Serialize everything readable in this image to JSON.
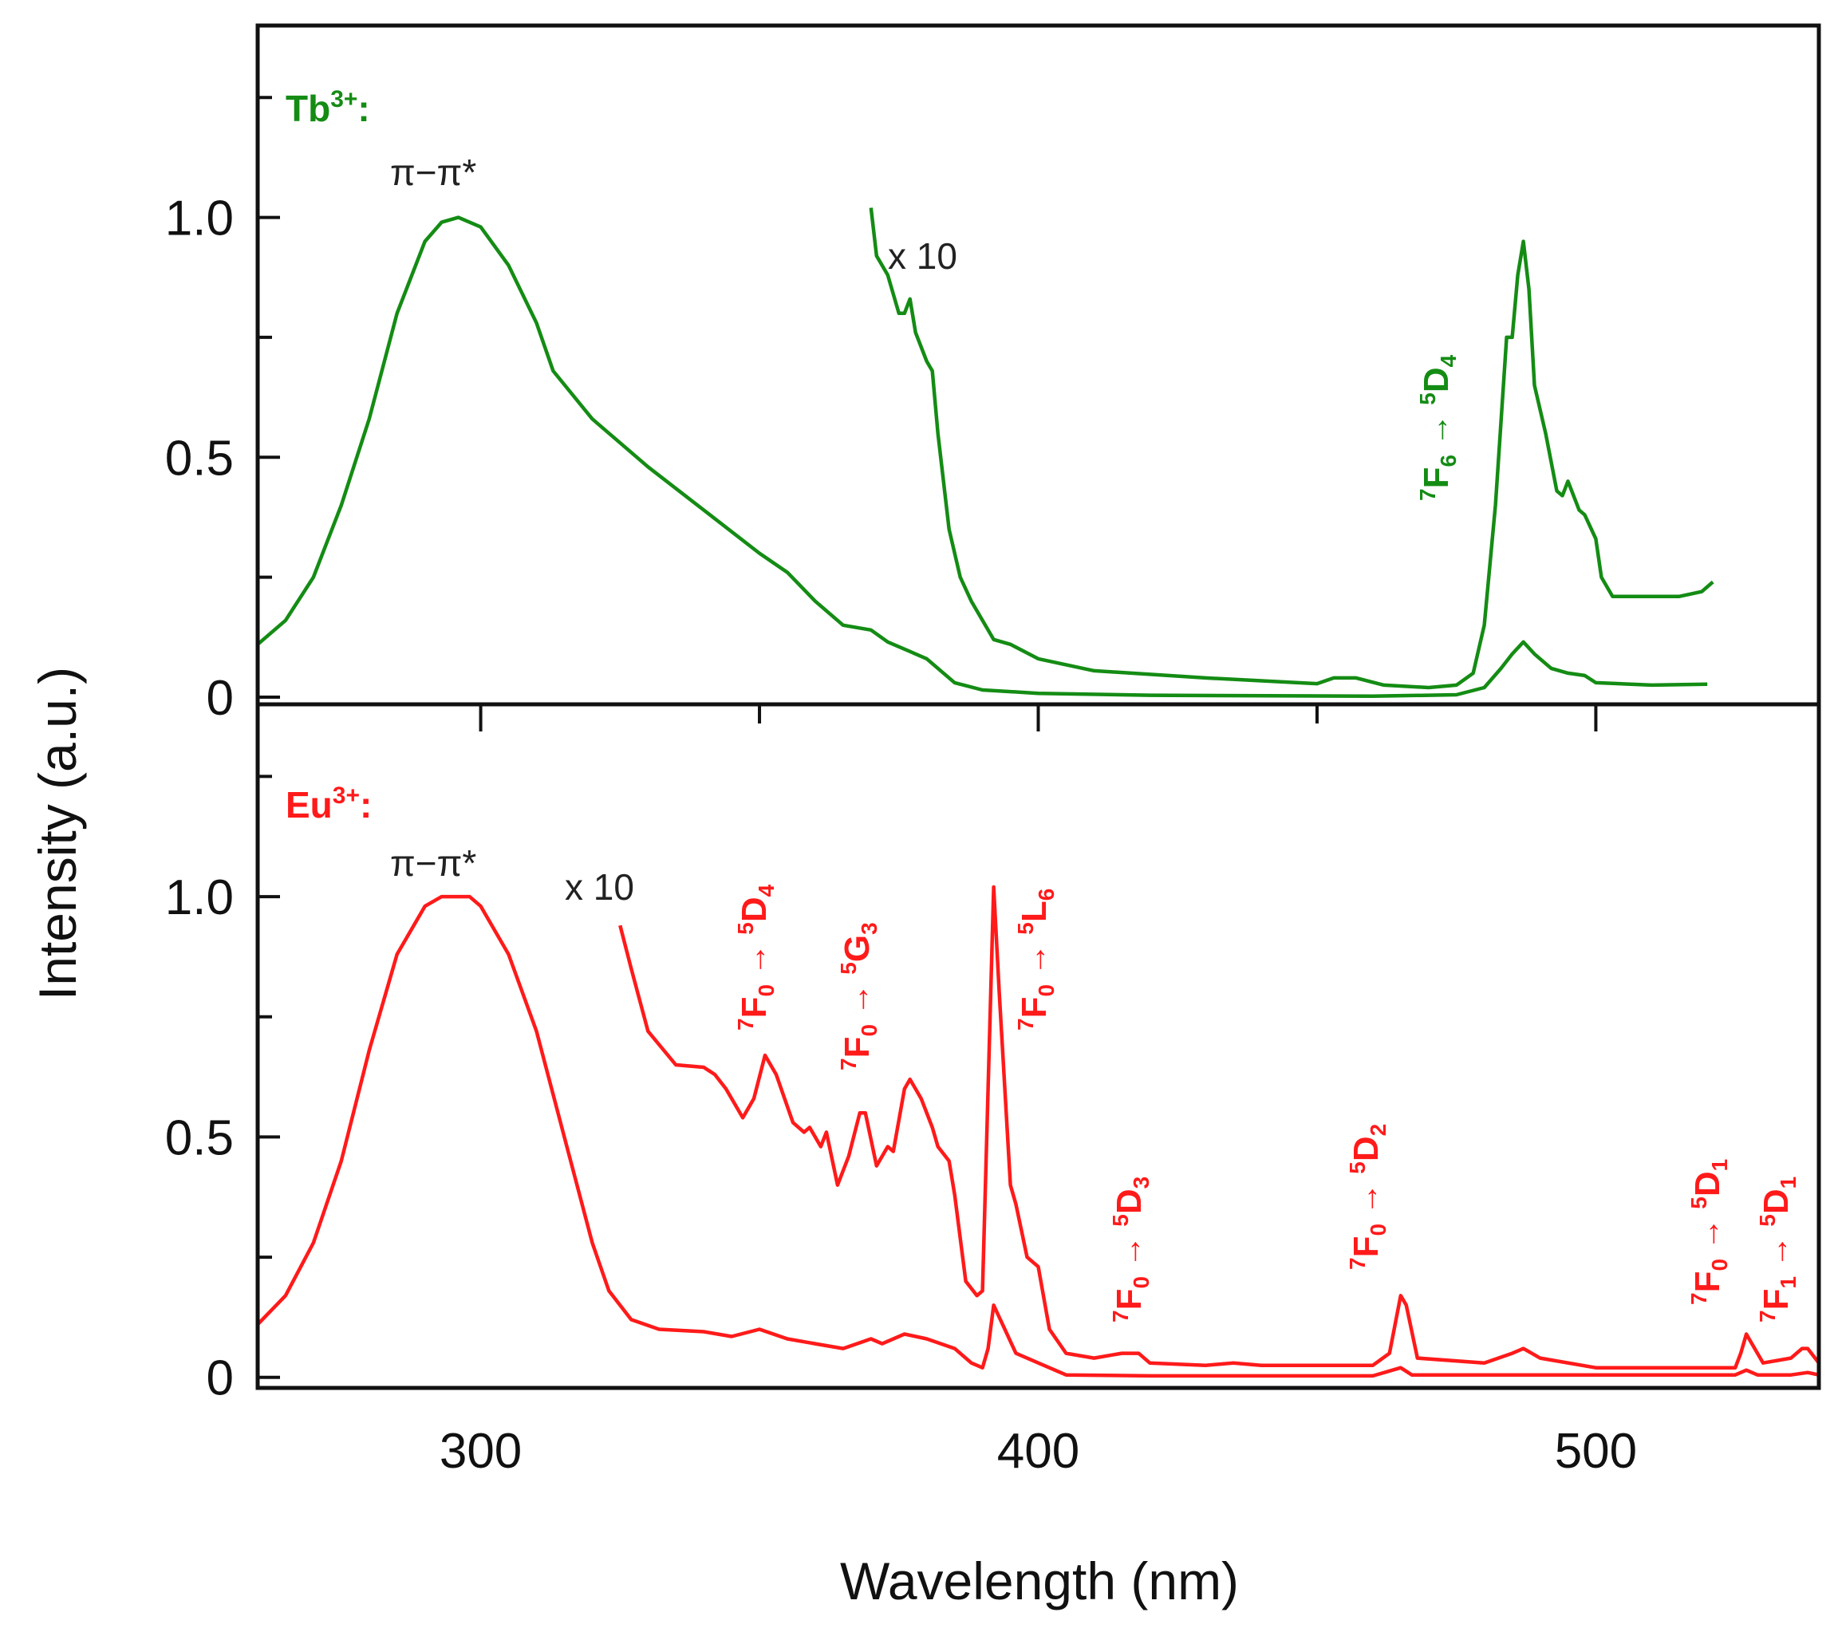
{
  "chart_data": [
    {
      "type": "line",
      "panel": "top",
      "title": "Tb3+:",
      "ion_label": {
        "main": "Tb",
        "sup": "3+",
        "suffix": ":"
      },
      "color": "#148c14",
      "xlabel": "Wavelength (nm)",
      "ylabel": "Intensity (a.u.)",
      "xlim": [
        260,
        540
      ],
      "ylim": [
        -0.015,
        1.4
      ],
      "xticks": [
        300,
        400,
        500
      ],
      "yticks": [
        0,
        0.5,
        1.0
      ],
      "ytick_labels": [
        "0",
        "0.5",
        "1.0"
      ],
      "annotations": {
        "band": "π−π*",
        "scale": "x 10"
      },
      "transitions": [
        {
          "a": "7",
          "b": "F",
          "c": "6",
          "arrow": " → ",
          "d": "5",
          "e": "D",
          "f": "4"
        }
      ],
      "series": [
        {
          "name": "Tb3+ excitation",
          "x": [
            260,
            265,
            270,
            275,
            280,
            285,
            290,
            293,
            296,
            300,
            305,
            310,
            313,
            320,
            325,
            330,
            340,
            350,
            355,
            360,
            365,
            370,
            373,
            376,
            380,
            385,
            390,
            400,
            420,
            460,
            475,
            480,
            483,
            485,
            487,
            489,
            492,
            495,
            498,
            500,
            510,
            520
          ],
          "y": [
            0.11,
            0.16,
            0.25,
            0.4,
            0.58,
            0.8,
            0.95,
            0.99,
            1.0,
            0.98,
            0.9,
            0.78,
            0.68,
            0.58,
            0.53,
            0.48,
            0.39,
            0.3,
            0.26,
            0.2,
            0.15,
            0.14,
            0.115,
            0.1,
            0.08,
            0.03,
            0.015,
            0.008,
            0.004,
            0.002,
            0.005,
            0.02,
            0.06,
            0.09,
            0.115,
            0.09,
            0.06,
            0.05,
            0.045,
            0.03,
            0.025,
            0.027
          ]
        },
        {
          "name": "Tb3+ excitation x10",
          "x": [
            370,
            371,
            373,
            375,
            376,
            377,
            378,
            380,
            381,
            382,
            384,
            386,
            388,
            390,
            392,
            395,
            400,
            410,
            430,
            450,
            453,
            457,
            462,
            470,
            475,
            478,
            480,
            482,
            484,
            485,
            486,
            487,
            488,
            489,
            491,
            493,
            494,
            495,
            497,
            498,
            500,
            501,
            503,
            510,
            515,
            519,
            521
          ],
          "y": [
            1.02,
            0.92,
            0.88,
            0.8,
            0.8,
            0.83,
            0.76,
            0.7,
            0.68,
            0.55,
            0.35,
            0.25,
            0.2,
            0.16,
            0.12,
            0.11,
            0.08,
            0.055,
            0.04,
            0.028,
            0.04,
            0.04,
            0.025,
            0.02,
            0.025,
            0.05,
            0.15,
            0.4,
            0.75,
            0.75,
            0.88,
            0.95,
            0.85,
            0.65,
            0.55,
            0.43,
            0.42,
            0.45,
            0.39,
            0.38,
            0.33,
            0.25,
            0.21,
            0.21,
            0.21,
            0.22,
            0.24
          ]
        }
      ]
    },
    {
      "type": "line",
      "panel": "bottom",
      "title": "Eu3+:",
      "ion_label": {
        "main": "Eu",
        "sup": "3+",
        "suffix": ":"
      },
      "color": "#ff1a1a",
      "xlabel": "Wavelength (nm)",
      "ylabel": "Intensity (a.u.)",
      "xlim": [
        260,
        540
      ],
      "ylim": [
        -0.022,
        1.4
      ],
      "xticks": [
        300,
        400,
        500
      ],
      "xtick_labels": [
        "300",
        "400",
        "500"
      ],
      "yticks": [
        0,
        0.5,
        1.0
      ],
      "ytick_labels": [
        "0",
        "0.5",
        "1.0"
      ],
      "annotations": {
        "band": "π−π*",
        "scale": "x 10"
      },
      "transitions": [
        {
          "a": "7",
          "b": "F",
          "c": "0",
          "arrow": " → ",
          "d": "5",
          "e": "D",
          "f": "4"
        },
        {
          "a": "7",
          "b": "F",
          "c": "0",
          "arrow": " → ",
          "d": "5",
          "e": "G",
          "f": "3"
        },
        {
          "a": "7",
          "b": "F",
          "c": "0",
          "arrow": " → ",
          "d": "5",
          "e": "L",
          "f": "6"
        },
        {
          "a": "7",
          "b": "F",
          "c": "0",
          "arrow": " → ",
          "d": "5",
          "e": "D",
          "f": "3"
        },
        {
          "a": "7",
          "b": "F",
          "c": "0",
          "arrow": " → ",
          "d": "5",
          "e": "D",
          "f": "2"
        },
        {
          "a": "7",
          "b": "F",
          "c": "0",
          "arrow": " → ",
          "d": "5",
          "e": "D",
          "f": "1"
        },
        {
          "a": "7",
          "b": "F",
          "c": "1",
          "arrow": " → ",
          "d": "5",
          "e": "D",
          "f": "1"
        }
      ],
      "series": [
        {
          "name": "Eu3+ excitation",
          "x": [
            260,
            265,
            270,
            275,
            280,
            285,
            290,
            293,
            298,
            300,
            305,
            310,
            315,
            320,
            323,
            327,
            332,
            340,
            345,
            350,
            355,
            360,
            365,
            370,
            372,
            376,
            380,
            385,
            388,
            390,
            391,
            392,
            394,
            396,
            400,
            405,
            420,
            460,
            465,
            467,
            480,
            500,
            525,
            527,
            529,
            535,
            538,
            540
          ],
          "y": [
            0.11,
            0.17,
            0.28,
            0.45,
            0.68,
            0.88,
            0.98,
            1.0,
            1.0,
            0.98,
            0.88,
            0.72,
            0.5,
            0.28,
            0.18,
            0.12,
            0.1,
            0.095,
            0.085,
            0.1,
            0.08,
            0.07,
            0.06,
            0.08,
            0.07,
            0.09,
            0.08,
            0.06,
            0.03,
            0.02,
            0.06,
            0.15,
            0.1,
            0.05,
            0.03,
            0.005,
            0.003,
            0.003,
            0.02,
            0.005,
            0.005,
            0.005,
            0.005,
            0.015,
            0.005,
            0.005,
            0.01,
            0.005
          ]
        },
        {
          "name": "Eu3+ excitation x10",
          "x": [
            325,
            327,
            330,
            335,
            340,
            342,
            344,
            347,
            349,
            351,
            353,
            356,
            358,
            359,
            361,
            362,
            364,
            366,
            368,
            369,
            371,
            373,
            374,
            376,
            377,
            379,
            381,
            382,
            384,
            385,
            387,
            389,
            390,
            391,
            392,
            393,
            395,
            396,
            398,
            400,
            402,
            405,
            410,
            415,
            418,
            420,
            430,
            435,
            440,
            460,
            463,
            465,
            466,
            468,
            480,
            485,
            487,
            490,
            500,
            525,
            526,
            527,
            528,
            530,
            535,
            537,
            538,
            540
          ],
          "y": [
            0.94,
            0.85,
            0.72,
            0.65,
            0.645,
            0.63,
            0.6,
            0.54,
            0.58,
            0.67,
            0.63,
            0.53,
            0.51,
            0.52,
            0.48,
            0.51,
            0.4,
            0.46,
            0.55,
            0.55,
            0.44,
            0.48,
            0.47,
            0.6,
            0.62,
            0.58,
            0.52,
            0.48,
            0.45,
            0.38,
            0.2,
            0.17,
            0.18,
            0.6,
            1.02,
            0.8,
            0.4,
            0.36,
            0.25,
            0.23,
            0.1,
            0.05,
            0.04,
            0.05,
            0.05,
            0.03,
            0.025,
            0.03,
            0.025,
            0.025,
            0.05,
            0.17,
            0.15,
            0.04,
            0.03,
            0.05,
            0.06,
            0.04,
            0.02,
            0.02,
            0.05,
            0.09,
            0.07,
            0.03,
            0.04,
            0.06,
            0.06,
            0.03
          ]
        }
      ]
    }
  ]
}
